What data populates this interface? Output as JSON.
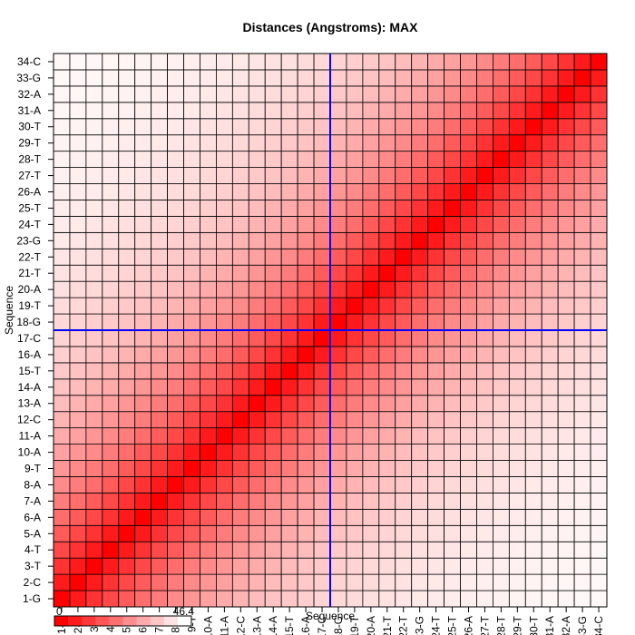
{
  "chart_data": {
    "type": "heatmap",
    "title": "Distances (Angstroms):  MAX",
    "xlabel": "Sequence",
    "ylabel": "Sequence",
    "labels": [
      "1-G",
      "2-C",
      "3-T",
      "4-T",
      "5-A",
      "6-A",
      "7-A",
      "8-A",
      "9-T",
      "10-A",
      "11-A",
      "12-C",
      "13-A",
      "14-A",
      "15-T",
      "16-A",
      "17-C",
      "18-G",
      "19-T",
      "20-A",
      "21-T",
      "22-T",
      "23-G",
      "24-T",
      "25-T",
      "26-A",
      "27-T",
      "28-T",
      "29-T",
      "30-T",
      "31-A",
      "32-A",
      "33-G",
      "34-C"
    ],
    "value_range": [
      0,
      46.4
    ],
    "color_low": "#FF0000",
    "color_high": "#FFFFFF",
    "legend_min_label": "0",
    "legend_max_label": "46.4",
    "crosshair_color": "#0000FF",
    "crosshair_between": [
      "17-C",
      "18-G"
    ],
    "value_model": "approx: 46.4*(1-exp(-|i-j|/9))",
    "decay_length": 9
  }
}
